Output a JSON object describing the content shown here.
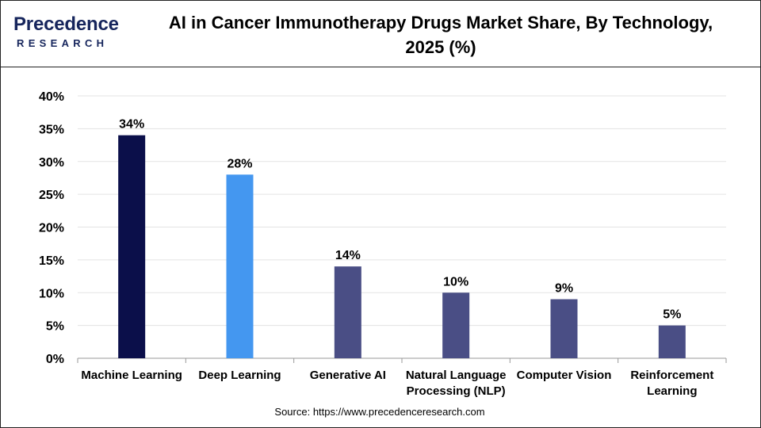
{
  "brand": {
    "logo_main": "Precedence",
    "logo_sub": "RESEARCH"
  },
  "header": {
    "title_line1": "AI in Cancer Immunotherapy Drugs Market Share, By Technology,",
    "title_line2": "2025 (%)"
  },
  "source": "Source: https://www.precedenceresearch.com",
  "colors": {
    "machine_learning": "#0b0f4a",
    "deep_learning": "#4497f0",
    "other": "#4a4e85",
    "grid": "#e3e3e3",
    "axis": "#999999"
  },
  "chart_data": {
    "type": "bar",
    "title": "AI in Cancer Immunotherapy Drugs Market Share, By Technology, 2025 (%)",
    "categories": [
      [
        "Machine Learning"
      ],
      [
        "Deep Learning"
      ],
      [
        "Generative AI"
      ],
      [
        "Natural Language",
        "Processing (NLP)"
      ],
      [
        "Computer Vision"
      ],
      [
        "Reinforcement",
        "Learning"
      ]
    ],
    "values": [
      34,
      28,
      14,
      10,
      9,
      5
    ],
    "value_labels": [
      "34%",
      "28%",
      "14%",
      "10%",
      "9%",
      "5%"
    ],
    "bar_colors": [
      "#0b0f4a",
      "#4497f0",
      "#4a4e85",
      "#4a4e85",
      "#4a4e85",
      "#4a4e85"
    ],
    "ylim": [
      0,
      40
    ],
    "yticks": [
      0,
      5,
      10,
      15,
      20,
      25,
      30,
      35,
      40
    ],
    "ytick_labels": [
      "0%",
      "5%",
      "10%",
      "15%",
      "20%",
      "25%",
      "30%",
      "35%",
      "40%"
    ],
    "grid": true,
    "xlabel": "",
    "ylabel": ""
  }
}
